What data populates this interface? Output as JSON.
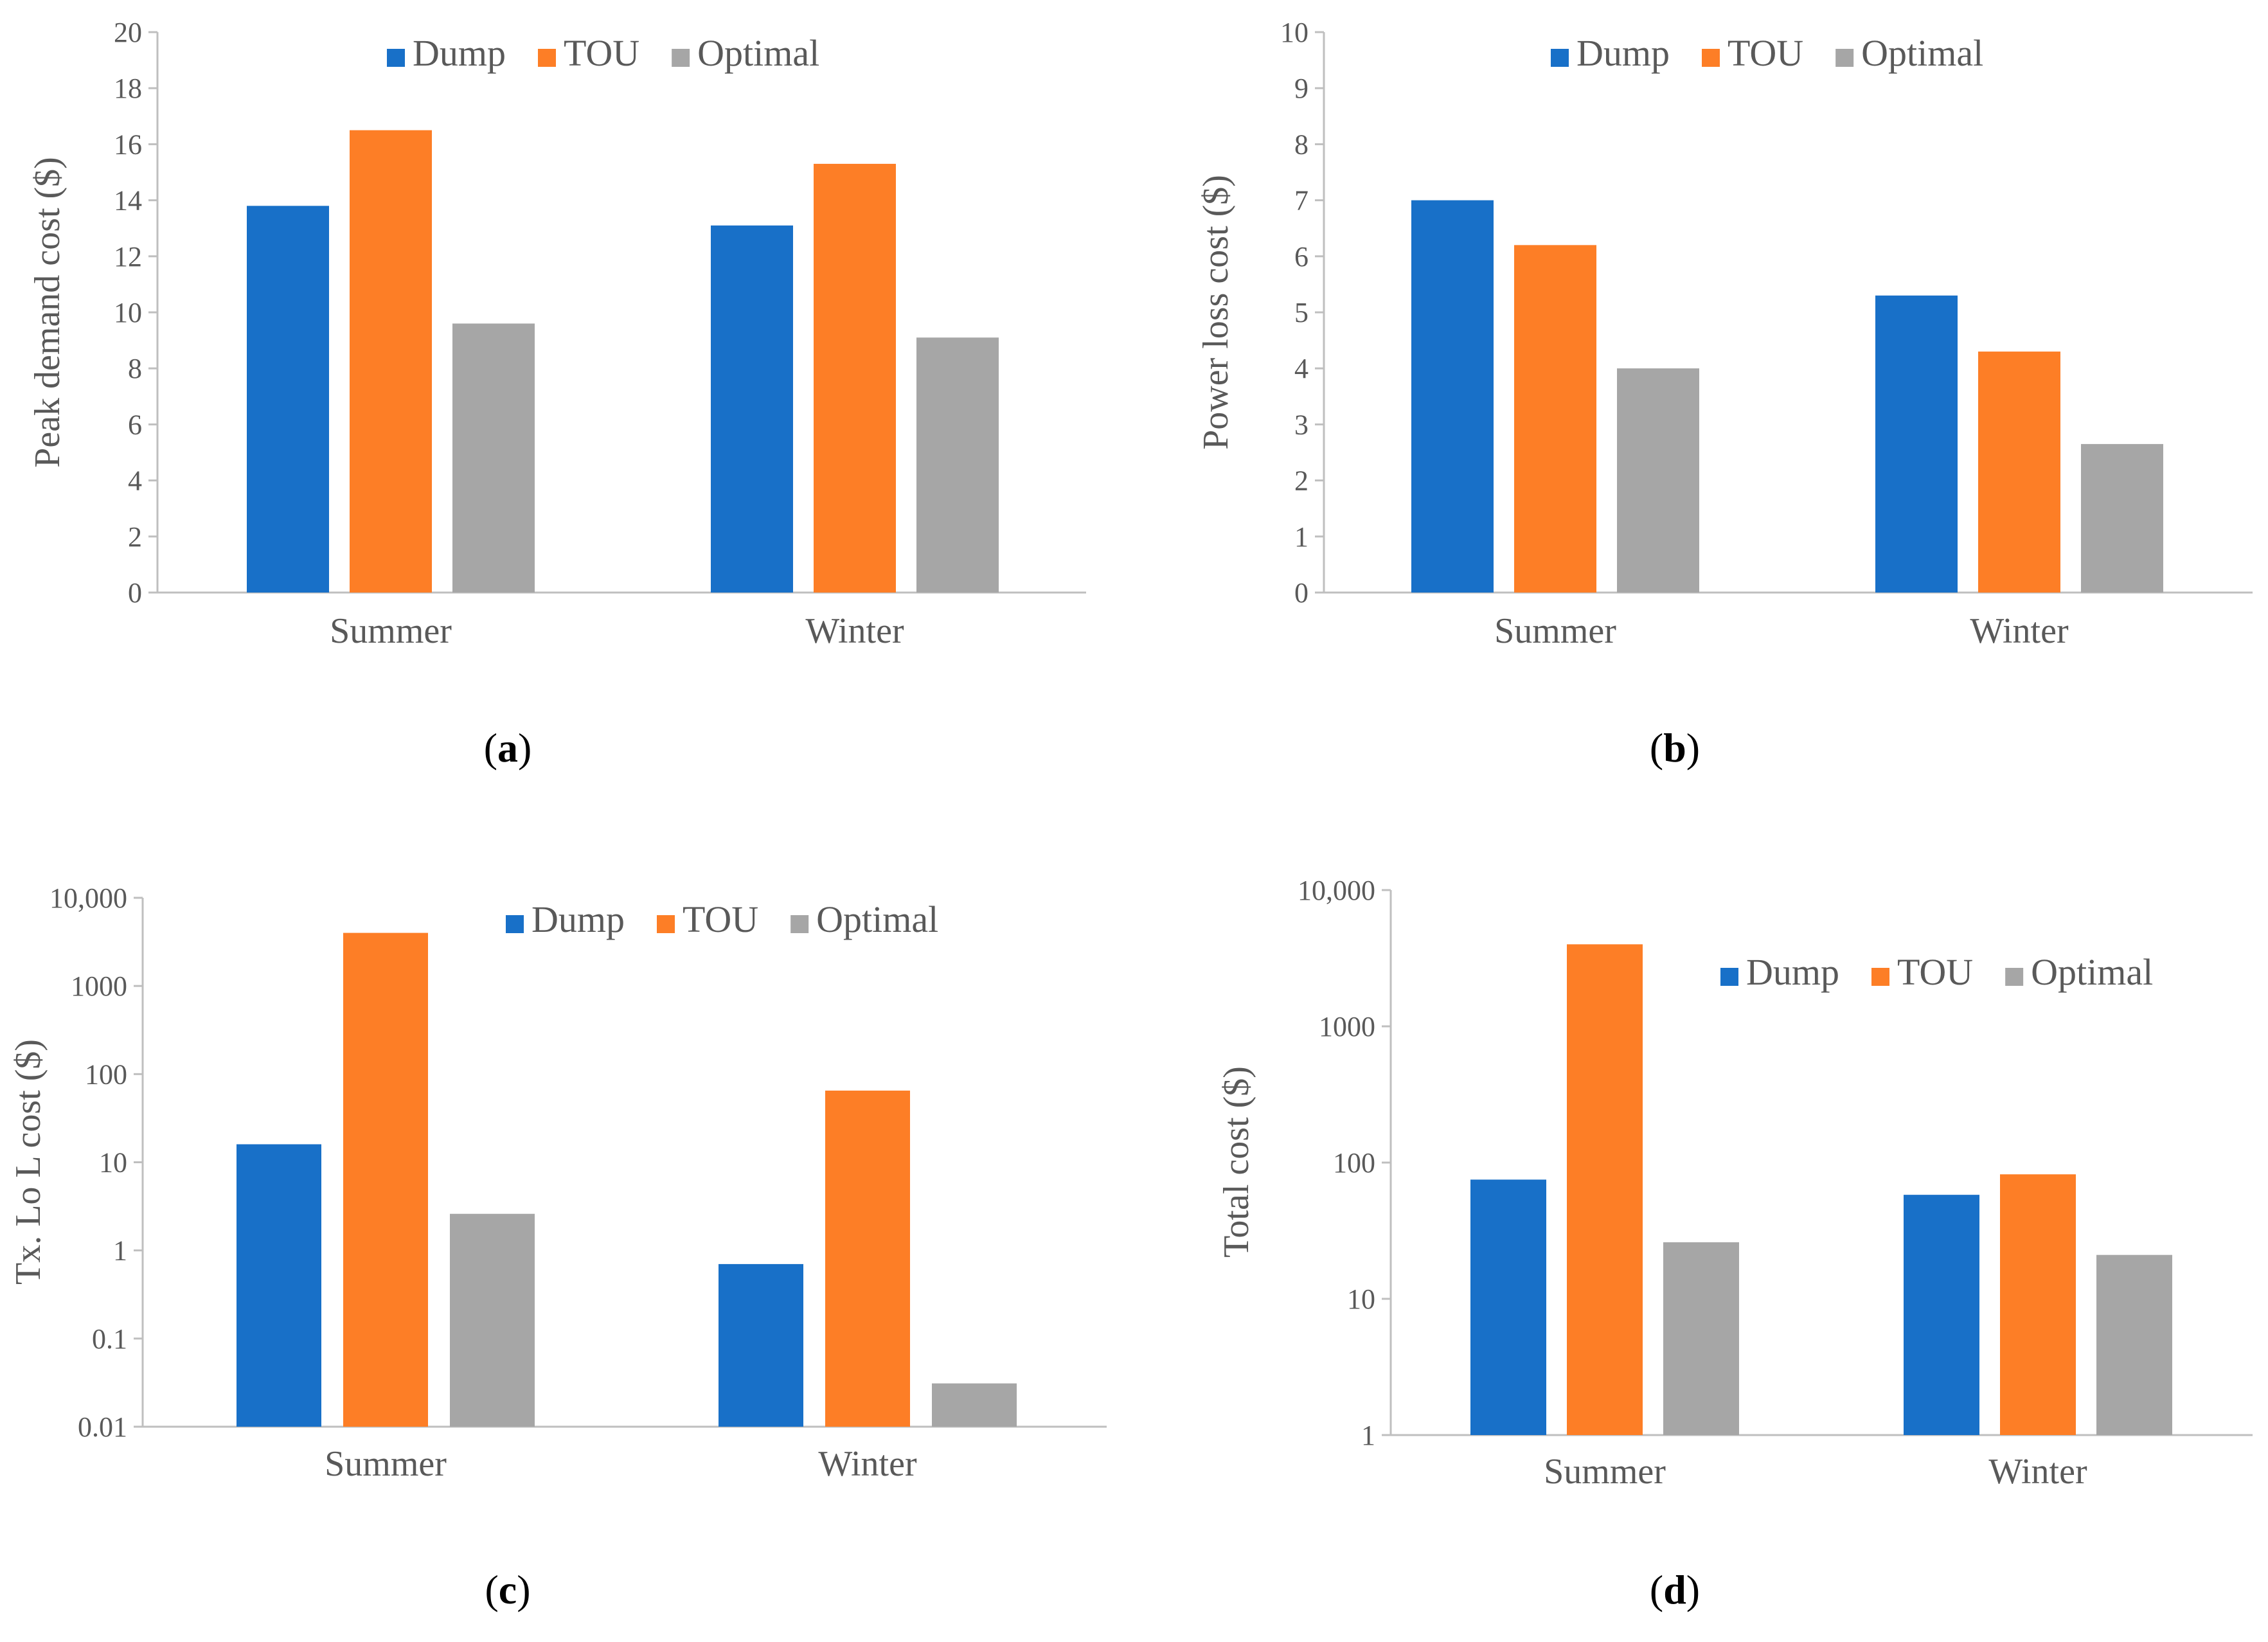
{
  "colors": {
    "Dump": "#1870c8",
    "TOU": "#fd7e26",
    "Optimal": "#a6a6a6",
    "axis": "#bfbfbf",
    "text": "#595959"
  },
  "chart_data": [
    {
      "panel": "(a)",
      "panel_letter": "a",
      "type": "bar",
      "scale": "linear",
      "categories": [
        "Summer",
        "Winter"
      ],
      "series": [
        {
          "name": "Dump",
          "values": [
            13.8,
            13.1
          ]
        },
        {
          "name": "TOU",
          "values": [
            16.5,
            15.3
          ]
        },
        {
          "name": "Optimal",
          "values": [
            9.6,
            9.1
          ]
        }
      ],
      "ylabel": "Peak demand cost ($)",
      "ylim": [
        0,
        20
      ],
      "yticks": [
        0,
        2,
        4,
        6,
        8,
        10,
        12,
        14,
        16,
        18,
        20
      ],
      "ytick_labels": [
        "0",
        "2",
        "4",
        "6",
        "8",
        "10",
        "12",
        "14",
        "16",
        "18",
        "20"
      ],
      "legend": "top-center",
      "grid": false
    },
    {
      "panel": "(b)",
      "panel_letter": "b",
      "type": "bar",
      "scale": "linear",
      "categories": [
        "Summer",
        "Winter"
      ],
      "series": [
        {
          "name": "Dump",
          "values": [
            7.0,
            5.3
          ]
        },
        {
          "name": "TOU",
          "values": [
            6.2,
            4.3
          ]
        },
        {
          "name": "Optimal",
          "values": [
            4.0,
            2.65
          ]
        }
      ],
      "ylabel": "Power loss cost ($)",
      "ylim": [
        0,
        10
      ],
      "yticks": [
        0,
        1,
        2,
        3,
        4,
        5,
        6,
        7,
        8,
        9,
        10
      ],
      "ytick_labels": [
        "0",
        "1",
        "2",
        "3",
        "4",
        "5",
        "6",
        "7",
        "8",
        "9",
        "10"
      ],
      "legend": "top-center",
      "grid": false
    },
    {
      "panel": "(c)",
      "panel_letter": "c",
      "type": "bar",
      "scale": "log",
      "categories": [
        "Summer",
        "Winter"
      ],
      "series": [
        {
          "name": "Dump",
          "values": [
            16,
            0.7
          ]
        },
        {
          "name": "TOU",
          "values": [
            4000,
            65
          ]
        },
        {
          "name": "Optimal",
          "values": [
            2.6,
            0.031
          ]
        }
      ],
      "ylabel": "Tx. Lo L cost ($)",
      "ylim": [
        0.01,
        10000
      ],
      "yticks": [
        0.01,
        0.1,
        1,
        10,
        100,
        1000,
        10000
      ],
      "ytick_labels": [
        "0.01",
        "0.1",
        "1",
        "10",
        "100",
        "1000",
        "10,000"
      ],
      "legend": "top-right",
      "grid": false
    },
    {
      "panel": "(d)",
      "panel_letter": "d",
      "type": "bar",
      "scale": "log",
      "categories": [
        "Summer",
        "Winter"
      ],
      "series": [
        {
          "name": "Dump",
          "values": [
            75,
            58
          ]
        },
        {
          "name": "TOU",
          "values": [
            4000,
            82
          ]
        },
        {
          "name": "Optimal",
          "values": [
            26,
            21
          ]
        }
      ],
      "ylabel": "Total cost ($)",
      "ylim": [
        1,
        10000
      ],
      "yticks": [
        1,
        10,
        100,
        1000,
        10000
      ],
      "ytick_labels": [
        "1",
        "10",
        "100",
        "1000",
        "10,000"
      ],
      "legend": "top-right",
      "grid": false
    }
  ]
}
